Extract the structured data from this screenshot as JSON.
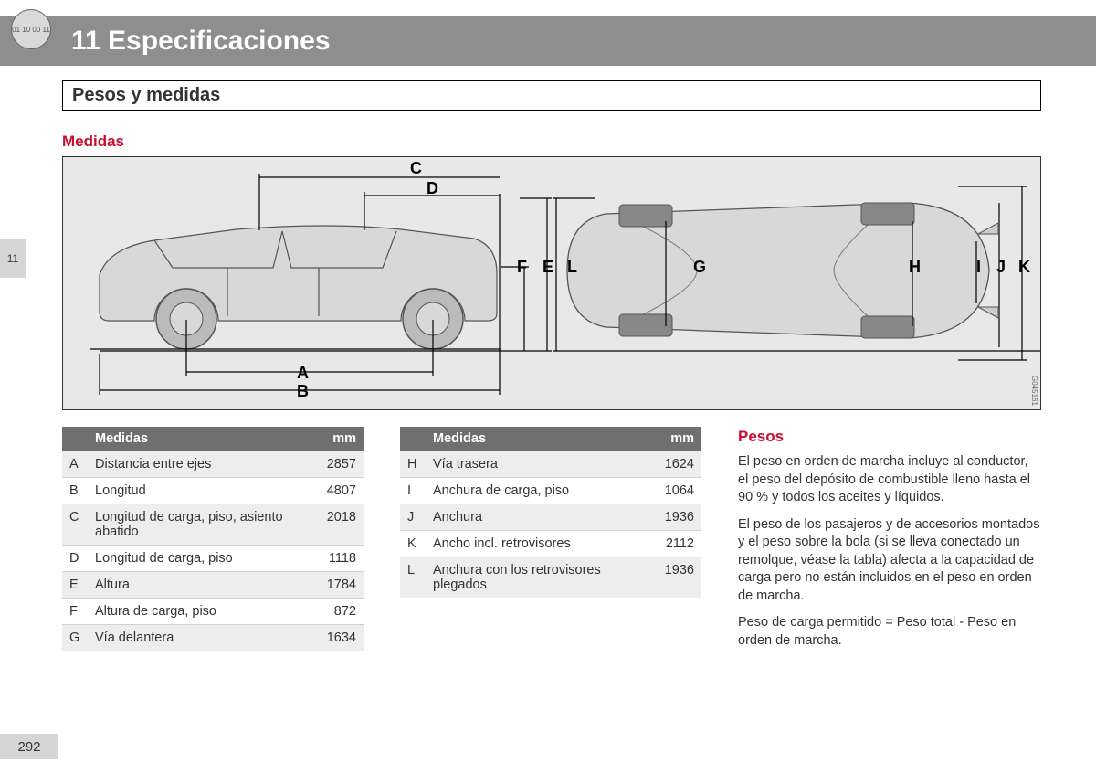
{
  "header": {
    "coin_text": "01 10\n00 11",
    "chapter": "11 Especificaciones"
  },
  "side_tab": "11",
  "page_number": "292",
  "section_title": "Pesos y medidas",
  "diagram": {
    "heading": "Medidas",
    "ref": "G045161",
    "labels": {
      "A": "A",
      "B": "B",
      "C": "C",
      "D": "D",
      "E": "E",
      "F": "F",
      "G": "G",
      "H": "H",
      "I": "I",
      "J": "J",
      "K": "K",
      "L": "L"
    }
  },
  "table1": {
    "head_key": "",
    "head_label": "Medidas",
    "head_val": "mm",
    "rows": [
      {
        "k": "A",
        "label": "Distancia entre ejes",
        "v": "2857"
      },
      {
        "k": "B",
        "label": "Longitud",
        "v": "4807"
      },
      {
        "k": "C",
        "label": "Longitud de carga, piso, asiento abatido",
        "v": "2018"
      },
      {
        "k": "D",
        "label": "Longitud de carga, piso",
        "v": "1118"
      },
      {
        "k": "E",
        "label": "Altura",
        "v": "1784"
      },
      {
        "k": "F",
        "label": "Altura de carga, piso",
        "v": "872"
      },
      {
        "k": "G",
        "label": "Vía delantera",
        "v": "1634"
      }
    ]
  },
  "table2": {
    "head_key": "",
    "head_label": "Medidas",
    "head_val": "mm",
    "rows": [
      {
        "k": "H",
        "label": "Vía trasera",
        "v": "1624"
      },
      {
        "k": "I",
        "label": "Anchura de carga, piso",
        "v": "1064"
      },
      {
        "k": "J",
        "label": "Anchura",
        "v": "1936"
      },
      {
        "k": "K",
        "label": "Ancho incl. retrovisores",
        "v": "2112"
      },
      {
        "k": "L",
        "label": "Anchura con los retrovisores plegados",
        "v": "1936"
      }
    ]
  },
  "pesos": {
    "heading": "Pesos",
    "p1": "El peso en orden de marcha incluye al conductor, el peso del depósito de combustible lleno hasta el 90 % y todos los aceites y líquidos.",
    "p2": "El peso de los pasajeros y de accesorios montados y el peso sobre la bola (si se lleva conectado un remolque, véase la tabla) afecta a la capacidad de carga pero no están incluidos en el peso en orden de marcha.",
    "p3": "Peso de carga permitido = Peso total - Peso en orden de marcha."
  },
  "colors": {
    "header_bg": "#8e8e8e",
    "accent_red": "#c8102e",
    "table_head": "#6f6f6f",
    "row_alt": "#ededed",
    "diagram_bg": "#e8e8e8"
  }
}
